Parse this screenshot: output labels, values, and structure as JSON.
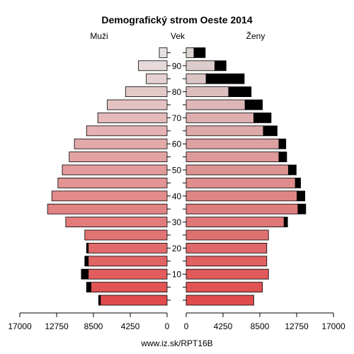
{
  "chart_data": {
    "type": "bar",
    "title": "Demografický strom Oeste 2014",
    "left_label": "Muži",
    "center_label": "Vek",
    "right_label": "Ženy",
    "footer": "www.iz.sk/RPT16B",
    "age_groups": [
      "0-4",
      "5-9",
      "10-14",
      "15-19",
      "20-24",
      "25-29",
      "30-34",
      "35-39",
      "40-44",
      "45-49",
      "50-54",
      "55-59",
      "60-64",
      "65-69",
      "70-74",
      "75-79",
      "80-84",
      "85-89",
      "90-94",
      "95+"
    ],
    "age_ticks": [
      "10",
      "20",
      "30",
      "40",
      "50",
      "60",
      "70",
      "80",
      "90"
    ],
    "x_ticks_left": [
      "17000",
      "12750",
      "8500",
      "4250",
      "0"
    ],
    "x_ticks_right": [
      "0",
      "4250",
      "8500",
      "12750",
      "17000"
    ],
    "xlim": [
      0,
      17000
    ],
    "series": [
      {
        "name": "Muži",
        "values": [
          7900,
          9300,
          9900,
          9500,
          9300,
          9500,
          11700,
          13800,
          13300,
          12600,
          12100,
          11300,
          10700,
          9300,
          8000,
          6900,
          4800,
          2400,
          3300,
          900
        ],
        "excess": [
          200,
          500,
          800,
          400,
          200,
          0,
          0,
          0,
          0,
          0,
          0,
          0,
          0,
          0,
          0,
          0,
          0,
          0,
          0,
          0
        ]
      },
      {
        "name": "Ženy",
        "values": [
          7800,
          8800,
          9500,
          9300,
          9300,
          9500,
          11700,
          13800,
          13700,
          13200,
          12700,
          11600,
          11500,
          10500,
          9800,
          8800,
          7500,
          6700,
          4600,
          2200
        ],
        "excess": [
          0,
          0,
          0,
          0,
          0,
          0,
          400,
          900,
          900,
          600,
          900,
          900,
          800,
          1600,
          2000,
          2000,
          2600,
          4400,
          1300,
          1300
        ]
      }
    ],
    "colors": {
      "young": "#e04c4c",
      "old_male": "#e6e1e1",
      "old_female": "#dcd3d3",
      "excess": "#000000"
    }
  }
}
